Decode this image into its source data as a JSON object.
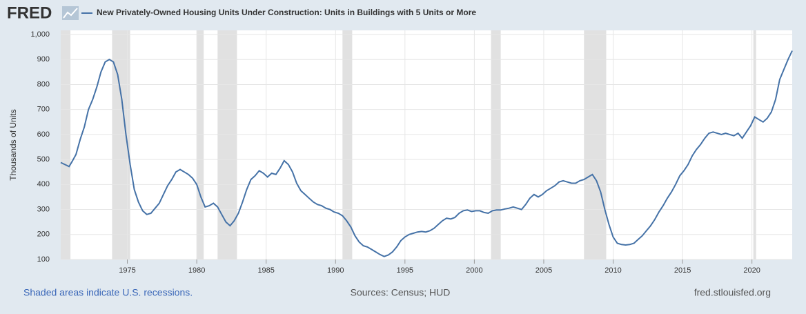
{
  "logo": "FRED",
  "chart_data": {
    "type": "line",
    "ylabel": "Thousands of Units",
    "x": [
      1970.2,
      1970.5,
      1970.8,
      1971.0,
      1971.3,
      1971.6,
      1971.9,
      1972.2,
      1972.5,
      1972.8,
      1973.1,
      1973.4,
      1973.7,
      1974.0,
      1974.3,
      1974.6,
      1974.9,
      1975.2,
      1975.5,
      1975.8,
      1976.1,
      1976.4,
      1976.7,
      1977.0,
      1977.3,
      1977.6,
      1977.9,
      1978.2,
      1978.5,
      1978.8,
      1979.1,
      1979.4,
      1979.7,
      1980.0,
      1980.3,
      1980.6,
      1980.9,
      1981.2,
      1981.5,
      1981.8,
      1982.1,
      1982.4,
      1982.7,
      1983.0,
      1983.3,
      1983.6,
      1983.9,
      1984.2,
      1984.5,
      1984.8,
      1985.1,
      1985.4,
      1985.7,
      1986.0,
      1986.3,
      1986.6,
      1986.9,
      1987.2,
      1987.5,
      1987.8,
      1988.1,
      1988.4,
      1988.7,
      1989.0,
      1989.3,
      1989.6,
      1989.9,
      1990.2,
      1990.5,
      1990.8,
      1991.1,
      1991.4,
      1991.7,
      1992.0,
      1992.3,
      1992.6,
      1992.9,
      1993.2,
      1993.5,
      1993.8,
      1994.1,
      1994.4,
      1994.7,
      1995.0,
      1995.3,
      1995.6,
      1995.9,
      1996.2,
      1996.5,
      1996.8,
      1997.1,
      1997.4,
      1997.7,
      1998.0,
      1998.3,
      1998.6,
      1998.9,
      1999.2,
      1999.5,
      1999.8,
      2000.1,
      2000.4,
      2000.7,
      2001.0,
      2001.3,
      2001.6,
      2001.9,
      2002.2,
      2002.5,
      2002.8,
      2003.1,
      2003.4,
      2003.7,
      2004.0,
      2004.3,
      2004.6,
      2004.9,
      2005.2,
      2005.5,
      2005.8,
      2006.1,
      2006.4,
      2006.7,
      2007.0,
      2007.3,
      2007.6,
      2007.9,
      2008.2,
      2008.5,
      2008.8,
      2009.1,
      2009.4,
      2009.7,
      2010.0,
      2010.3,
      2010.6,
      2010.9,
      2011.2,
      2011.5,
      2011.8,
      2012.1,
      2012.4,
      2012.7,
      2013.0,
      2013.3,
      2013.6,
      2013.9,
      2014.2,
      2014.5,
      2014.8,
      2015.1,
      2015.4,
      2015.7,
      2016.0,
      2016.3,
      2016.6,
      2016.9,
      2017.2,
      2017.5,
      2017.8,
      2018.1,
      2018.4,
      2018.7,
      2019.0,
      2019.3,
      2019.6,
      2019.9,
      2020.2,
      2020.5,
      2020.8,
      2021.1,
      2021.4,
      2021.7,
      2022.0,
      2022.3,
      2022.6,
      2022.9
    ],
    "series": [
      {
        "name": "New Privately-Owned Housing Units Under Construction: Units in Buildings with 5 Units or More",
        "color": "#4572a7",
        "values": [
          488,
          480,
          472,
          490,
          520,
          580,
          630,
          700,
          740,
          790,
          850,
          890,
          900,
          890,
          840,
          740,
          600,
          480,
          380,
          330,
          295,
          280,
          285,
          305,
          325,
          360,
          395,
          420,
          450,
          460,
          450,
          440,
          425,
          400,
          350,
          310,
          315,
          325,
          310,
          280,
          250,
          235,
          255,
          285,
          330,
          380,
          420,
          435,
          455,
          445,
          430,
          445,
          440,
          465,
          495,
          480,
          450,
          405,
          375,
          360,
          345,
          330,
          320,
          315,
          305,
          300,
          290,
          285,
          275,
          255,
          230,
          195,
          170,
          155,
          150,
          140,
          130,
          120,
          112,
          118,
          130,
          150,
          175,
          190,
          200,
          205,
          210,
          212,
          210,
          215,
          225,
          240,
          255,
          265,
          262,
          268,
          285,
          295,
          298,
          292,
          295,
          295,
          288,
          285,
          295,
          298,
          298,
          302,
          305,
          310,
          305,
          300,
          320,
          345,
          360,
          350,
          360,
          375,
          385,
          395,
          410,
          415,
          410,
          405,
          405,
          415,
          420,
          430,
          440,
          415,
          370,
          300,
          240,
          190,
          165,
          160,
          158,
          160,
          165,
          180,
          195,
          215,
          235,
          260,
          290,
          315,
          345,
          370,
          400,
          435,
          455,
          480,
          515,
          540,
          560,
          585,
          605,
          610,
          605,
          600,
          605,
          600,
          595,
          605,
          585,
          610,
          635,
          670,
          660,
          650,
          665,
          690,
          740,
          820,
          860,
          900,
          935
        ]
      }
    ],
    "recessions": [
      [
        1969.9,
        1970.9
      ],
      [
        1973.9,
        1975.2
      ],
      [
        1980.0,
        1980.5
      ],
      [
        1981.5,
        1982.9
      ],
      [
        1990.5,
        1991.2
      ],
      [
        2001.2,
        2001.9
      ],
      [
        2007.9,
        2009.5
      ],
      [
        2020.1,
        2020.3
      ]
    ],
    "recession_color": "#e1e1e1",
    "xlim": [
      1970.2,
      2022.9
    ],
    "xticks": [
      1975,
      1980,
      1985,
      1990,
      1995,
      2000,
      2005,
      2010,
      2015,
      2020
    ],
    "ylim": [
      100,
      1000
    ],
    "yticks": [
      100,
      200,
      300,
      400,
      500,
      600,
      700,
      800,
      900,
      {
        "value": 1000,
        "label": "1,000"
      }
    ],
    "grid": true,
    "note": "Shaded areas indicate U.S. recessions.",
    "source": "Sources: Census; HUD",
    "site": "fred.stlouisfed.org"
  }
}
